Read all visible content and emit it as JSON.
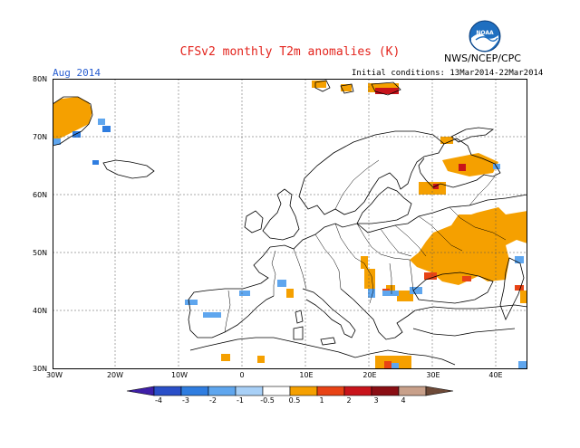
{
  "title": "CFSv2 monthly T2m anomalies (K)",
  "org": "NWS/NCEP/CPC",
  "logo_text": "NOAA",
  "period": "Aug 2014",
  "init": "Initial conditions: 13Mar2014-22Mar2014",
  "lat_labels": [
    "80N",
    "70N",
    "60N",
    "50N",
    "40N",
    "30N"
  ],
  "lon_labels": [
    "30W",
    "20W",
    "10W",
    "0",
    "10E",
    "20E",
    "30E",
    "40E"
  ],
  "colorbar": {
    "labels": [
      "-4",
      "-3",
      "-2",
      "-1",
      "-0.5",
      "0.5",
      "1",
      "2",
      "3",
      "4"
    ],
    "colors": [
      "#3f1fa8",
      "#2a4fc8",
      "#2f7de0",
      "#5fa6ee",
      "#a8d0f7",
      "#ffffff",
      "#f5a000",
      "#e84315",
      "#c8141b",
      "#8a0e14",
      "#c8a08a",
      "#6e4a38"
    ]
  },
  "colors": {
    "title": "#e3231c",
    "period": "#2a5fd0",
    "warm": "#f5a000",
    "warm2": "#e84315",
    "hot": "#c8141b",
    "cool": "#5fa6ee",
    "cool2": "#2f7de0"
  }
}
